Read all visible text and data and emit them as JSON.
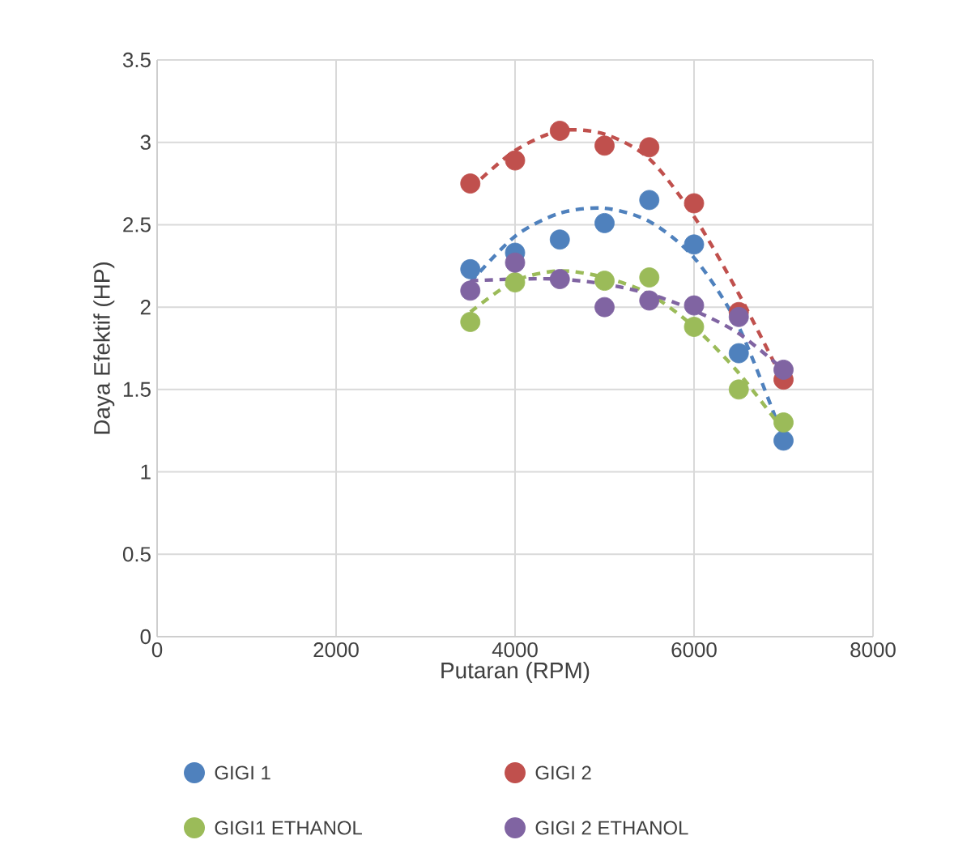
{
  "chart_data": {
    "type": "scatter",
    "xlabel": "Putaran (RPM)",
    "ylabel": "Daya Efektif  (HP)",
    "xlim": [
      0,
      8000
    ],
    "xticks": [
      0,
      2000,
      4000,
      6000,
      8000
    ],
    "ylim": [
      0,
      3.5
    ],
    "yticks": [
      0,
      0.5,
      1,
      1.5,
      2,
      2.5,
      3,
      3.5
    ],
    "grid": true,
    "legend": "bottom",
    "marker": "circle",
    "x": [
      3500,
      4000,
      4500,
      5000,
      5500,
      6000,
      6500,
      7000
    ],
    "series": [
      {
        "name": "GIGI 1",
        "color": "#4f81bd",
        "values": [
          2.23,
          2.33,
          2.41,
          2.51,
          2.65,
          2.38,
          1.72,
          1.19
        ]
      },
      {
        "name": "GIGI 2",
        "color": "#c0504d",
        "values": [
          2.75,
          2.89,
          3.07,
          2.98,
          2.97,
          2.63,
          1.97,
          1.56
        ]
      },
      {
        "name": "GIGI1 ETHANOL",
        "color": "#9bbb59",
        "values": [
          1.91,
          2.15,
          null,
          2.16,
          2.18,
          1.88,
          1.5,
          1.3
        ]
      },
      {
        "name": "GIGI 2 ETHANOL",
        "color": "#8064a2",
        "values": [
          2.1,
          2.27,
          2.17,
          2.0,
          2.04,
          2.01,
          1.94,
          1.62
        ]
      },
      {
        "type": "line",
        "marker": "none",
        "line_style": "dashed",
        "color": "#4f81bd",
        "values": [
          2.15,
          2.43,
          2.57,
          2.6,
          2.52,
          2.3,
          1.88,
          1.2
        ]
      },
      {
        "type": "line",
        "marker": "none",
        "line_style": "dashed",
        "color": "#c0504d",
        "values": [
          2.72,
          2.95,
          3.07,
          3.05,
          2.9,
          2.55,
          2.08,
          1.55
        ]
      },
      {
        "type": "line",
        "marker": "none",
        "line_style": "dashed",
        "color": "#9bbb59",
        "values": [
          1.97,
          2.16,
          2.22,
          2.18,
          2.08,
          1.88,
          1.6,
          1.25
        ]
      },
      {
        "type": "line",
        "marker": "none",
        "line_style": "dashed",
        "color": "#8064a2",
        "values": [
          2.16,
          2.17,
          2.17,
          2.14,
          2.08,
          1.98,
          1.84,
          1.62
        ]
      }
    ]
  }
}
